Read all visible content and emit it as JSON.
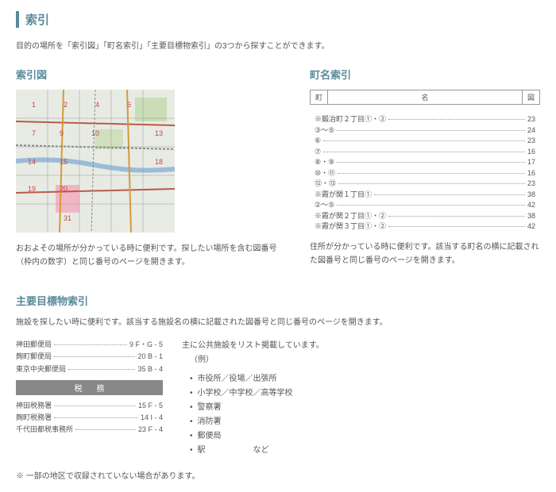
{
  "title": "索引",
  "intro": "目的の場所を「索引図」「町名索引」「主要目標物索引」の3つから探すことができます。",
  "indexMap": {
    "title": "索引図",
    "caption": "おおよその場所が分かっている時に便利です。探したい場所を含む図番号（枠内の数字）と同じ番号のページを開きます。"
  },
  "townIndex": {
    "title": "町名索引",
    "headers": {
      "town": "町",
      "name": "名",
      "figure": "図"
    },
    "rows": [
      {
        "name": "※鍛冶町２丁目①・②",
        "page": "23"
      },
      {
        "name": "③～⑤",
        "page": "24"
      },
      {
        "name": "⑥",
        "page": "23"
      },
      {
        "name": "⑦",
        "page": "16"
      },
      {
        "name": "⑧・⑨",
        "page": "17"
      },
      {
        "name": "⑩・⑪",
        "page": "16"
      },
      {
        "name": "⑫・⑬",
        "page": "23"
      },
      {
        "name": "※霞が関１丁目①",
        "page": "38"
      },
      {
        "name": "②～⑤",
        "page": "42"
      },
      {
        "name": "※霞が関２丁目①・②",
        "page": "38"
      },
      {
        "name": "※霞が関３丁目①・②",
        "page": "42"
      }
    ],
    "caption": "住所が分かっている時に便利です。該当する町名の横に記載された図番号と同じ番号のページを開きます。"
  },
  "landmark": {
    "title": "主要目標物索引",
    "intro": "施設を探したい時に便利です。該当する施設名の横に記載された図番号と同じ番号のページを開きます。",
    "post": [
      {
        "name": "神田郵便局",
        "val": "9  F・G - 5"
      },
      {
        "name": "麹町郵便局",
        "val": "20  B - 1"
      },
      {
        "name": "東京中央郵便局",
        "val": "35  B - 4"
      }
    ],
    "taxHeader": "税務",
    "tax": [
      {
        "name": "神田税務署",
        "val": "15  F - 5"
      },
      {
        "name": "麹町税務署",
        "val": "14  I - 4"
      },
      {
        "name": "千代田都税事務所",
        "val": "23  F - 4"
      }
    ],
    "rightNote1": "主に公共施設をリスト掲載しています。",
    "rightNote2": "（例）",
    "examples": [
      "市役所／役場／出張所",
      "小学校／中学校／高等学校",
      "警察署",
      "消防署",
      "郵便局",
      "駅　　　　　　など"
    ]
  },
  "footnote": "※ 一部の地区で収録されていない場合があります。",
  "mapColors": {
    "bg": "#e8ebe4",
    "road1": "#b85a4a",
    "road2": "#d49a3a",
    "water": "#7aa8d4",
    "highlight": "#f5a0b8",
    "park": "#b8d497",
    "rail": "#888"
  }
}
